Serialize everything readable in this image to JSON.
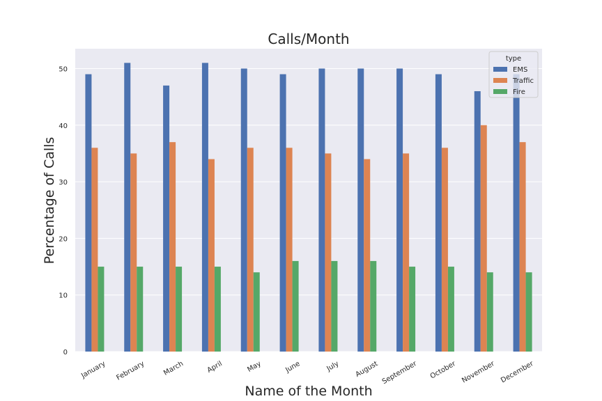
{
  "chart_data": {
    "type": "bar",
    "title": "Calls/Month",
    "xlabel": "Name of the Month",
    "ylabel": "Percentage of Calls",
    "categories": [
      "January",
      "February",
      "March",
      "April",
      "May",
      "June",
      "July",
      "August",
      "September",
      "October",
      "November",
      "December"
    ],
    "series": [
      {
        "name": "EMS",
        "color": "#4c72b0",
        "values": [
          49,
          51,
          47,
          51,
          50,
          49,
          50,
          50,
          50,
          49,
          46,
          49
        ]
      },
      {
        "name": "Traffic",
        "color": "#dd8452",
        "values": [
          36,
          35,
          37,
          34,
          36,
          36,
          35,
          34,
          35,
          36,
          40,
          37
        ]
      },
      {
        "name": "Fire",
        "color": "#55a868",
        "values": [
          15,
          15,
          15,
          15,
          14,
          16,
          16,
          16,
          15,
          15,
          14,
          14
        ]
      }
    ],
    "ylim": [
      0,
      53.5
    ],
    "yticks": [
      0,
      10,
      20,
      30,
      40,
      50
    ],
    "grid": true,
    "legend": {
      "title": "type",
      "position": "top-right"
    },
    "colors": {
      "plot_background": "#eaeaf2",
      "grid": "#ffffff"
    }
  }
}
